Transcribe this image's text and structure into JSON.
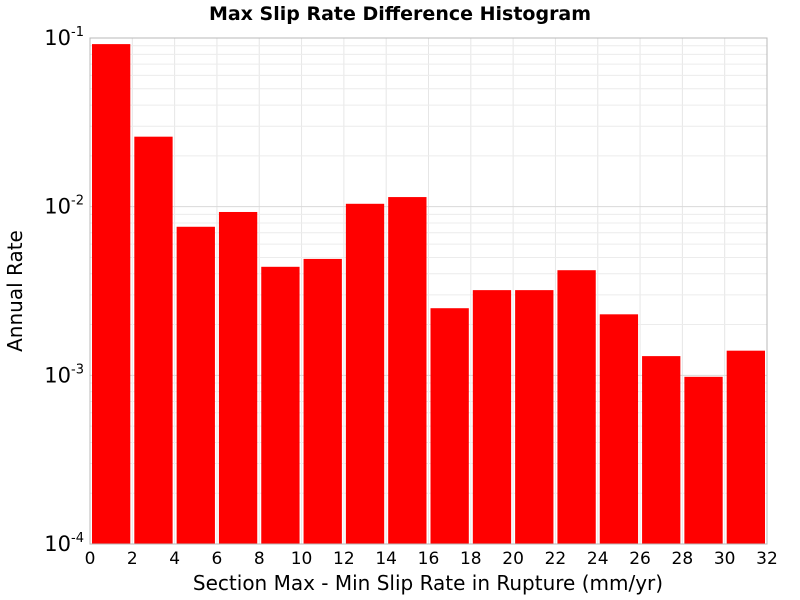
{
  "chart_data": {
    "type": "bar",
    "title": "Max Slip Rate Difference Histogram",
    "xlabel": "Section Max - Min Slip Rate in Rupture (mm/yr)",
    "ylabel": "Annual Rate",
    "y_scale": "log",
    "xlim": [
      0,
      32
    ],
    "ylim": [
      0.0001,
      0.1
    ],
    "x_ticks": [
      "0",
      "2",
      "4",
      "6",
      "8",
      "10",
      "12",
      "14",
      "16",
      "18",
      "20",
      "22",
      "24",
      "26",
      "28",
      "30",
      "32"
    ],
    "y_ticks": [
      {
        "base": "10",
        "exp": "-4",
        "value": 0.0001
      },
      {
        "base": "10",
        "exp": "-3",
        "value": 0.001
      },
      {
        "base": "10",
        "exp": "-2",
        "value": 0.01
      },
      {
        "base": "10",
        "exp": "-1",
        "value": 0.1
      }
    ],
    "grid": true,
    "bar_color": "#ff0000",
    "bins": [
      {
        "x_start": 0,
        "x_end": 2,
        "value": 0.092
      },
      {
        "x_start": 2,
        "x_end": 4,
        "value": 0.026
      },
      {
        "x_start": 4,
        "x_end": 6,
        "value": 0.0076
      },
      {
        "x_start": 6,
        "x_end": 8,
        "value": 0.0093
      },
      {
        "x_start": 8,
        "x_end": 10,
        "value": 0.0044
      },
      {
        "x_start": 10,
        "x_end": 12,
        "value": 0.0049
      },
      {
        "x_start": 12,
        "x_end": 14,
        "value": 0.0104
      },
      {
        "x_start": 14,
        "x_end": 16,
        "value": 0.0114
      },
      {
        "x_start": 16,
        "x_end": 18,
        "value": 0.0025
      },
      {
        "x_start": 18,
        "x_end": 20,
        "value": 0.0032
      },
      {
        "x_start": 20,
        "x_end": 22,
        "value": 0.0032
      },
      {
        "x_start": 22,
        "x_end": 24,
        "value": 0.0042
      },
      {
        "x_start": 24,
        "x_end": 26,
        "value": 0.0023
      },
      {
        "x_start": 26,
        "x_end": 28,
        "value": 0.0013
      },
      {
        "x_start": 28,
        "x_end": 30,
        "value": 0.00098
      },
      {
        "x_start": 30,
        "x_end": 32,
        "value": 0.0014
      }
    ]
  }
}
